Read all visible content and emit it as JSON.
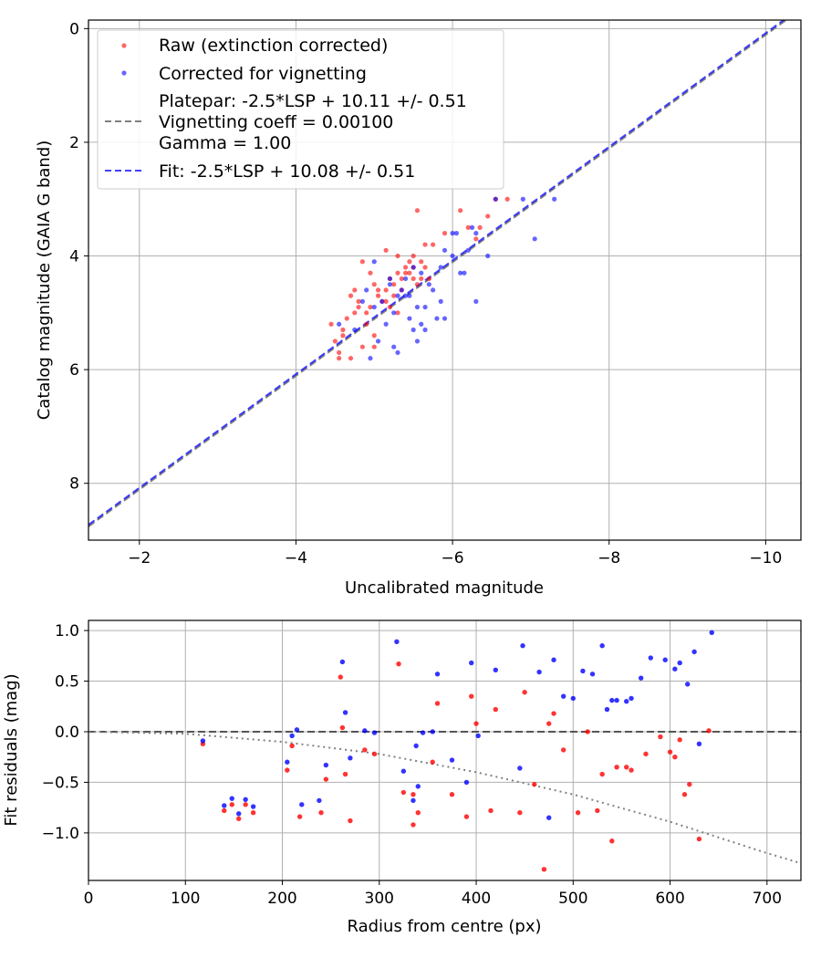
{
  "chart_data": [
    {
      "type": "scatter",
      "title": "",
      "xlabel": "Uncalibrated magnitude",
      "ylabel": "Catalog magnitude (GAIA G band)",
      "xlim": [
        -1.35,
        -10.45
      ],
      "ylim": [
        9.0,
        -0.15
      ],
      "x_inverted": true,
      "y_inverted": true,
      "grid": true,
      "legend_position": "top-left",
      "xticks": [
        -2,
        -4,
        -6,
        -8,
        -10
      ],
      "xtick_labels": [
        "−2",
        "−4",
        "−6",
        "−8",
        "−10"
      ],
      "yticks": [
        0,
        2,
        4,
        6,
        8
      ],
      "ytick_labels": [
        "0",
        "2",
        "4",
        "6",
        "8"
      ],
      "series": [
        {
          "name": "Raw (extinction corrected)",
          "kind": "scatter",
          "color": "#ff0000",
          "x": [
            -4.45,
            -4.5,
            -4.55,
            -4.6,
            -4.7,
            -4.75,
            -4.8,
            -4.85,
            -4.9,
            -4.95,
            -5.0,
            -5.05,
            -5.1,
            -5.15,
            -5.2,
            -5.25,
            -5.3,
            -5.35,
            -5.4,
            -5.45,
            -5.5,
            -5.55,
            -5.6,
            -5.65,
            -5.7,
            -4.65,
            -4.8,
            -5.0,
            -5.2,
            -5.35,
            -5.45,
            -5.55,
            -5.75,
            -5.9,
            -6.1,
            -6.2,
            -6.3,
            -6.45,
            -6.55,
            -6.7,
            -4.55,
            -4.75,
            -4.95,
            -5.15,
            -5.3,
            -5.5,
            -5.6,
            -4.6,
            -4.9,
            -5.05,
            -5.25,
            -5.4,
            -4.7,
            -5.0,
            -5.3,
            -5.5,
            -5.15,
            -4.85,
            -5.65,
            -6.35
          ],
          "y": [
            5.2,
            5.5,
            5.8,
            5.3,
            4.7,
            5.0,
            4.8,
            5.6,
            5.2,
            4.9,
            4.5,
            4.7,
            4.8,
            4.6,
            4.4,
            4.5,
            4.3,
            4.4,
            4.2,
            4.3,
            4.4,
            4.5,
            4.1,
            4.2,
            4.4,
            5.1,
            4.9,
            5.4,
            4.9,
            4.6,
            4.1,
            3.2,
            3.8,
            3.6,
            3.2,
            3.5,
            3.7,
            3.3,
            3.0,
            3.0,
            5.7,
            4.6,
            4.3,
            4.8,
            4.0,
            4.0,
            4.4,
            5.4,
            5.0,
            4.6,
            4.7,
            4.3,
            5.8,
            5.6,
            5.0,
            4.2,
            3.9,
            4.1,
            3.8,
            3.5
          ]
        },
        {
          "name": "Corrected for vignetting",
          "kind": "scatter",
          "color": "#0000ff",
          "x": [
            -4.55,
            -4.75,
            -4.9,
            -5.0,
            -5.1,
            -5.2,
            -5.3,
            -5.35,
            -5.4,
            -5.45,
            -5.5,
            -5.55,
            -5.6,
            -5.7,
            -5.75,
            -5.85,
            -5.9,
            -6.0,
            -6.05,
            -6.15,
            -6.25,
            -6.3,
            -6.45,
            -5.05,
            -5.15,
            -5.25,
            -5.45,
            -5.6,
            -5.65,
            -5.85,
            -6.1,
            -6.3,
            -6.55,
            -6.9,
            -7.05,
            -7.3,
            -4.95,
            -5.3,
            -5.55,
            -4.85,
            -5.0,
            -5.2,
            -5.4,
            -5.65,
            -5.8,
            -6.0,
            -6.2,
            -5.5,
            -5.9,
            -5.25
          ],
          "y": [
            5.2,
            5.3,
            4.6,
            4.9,
            4.8,
            4.5,
            4.7,
            4.6,
            4.4,
            4.7,
            4.2,
            4.9,
            4.3,
            4.5,
            4.6,
            4.2,
            3.9,
            4.0,
            3.6,
            4.3,
            3.5,
            3.6,
            4.0,
            5.5,
            5.2,
            5.0,
            5.1,
            5.2,
            5.3,
            4.8,
            4.3,
            4.8,
            3.0,
            3.0,
            3.7,
            3.0,
            5.8,
            5.7,
            5.5,
            4.8,
            4.1,
            4.4,
            4.7,
            4.9,
            5.1,
            3.6,
            3.9,
            5.3,
            5.1,
            5.6
          ]
        },
        {
          "name": "Platepar: -2.5*LSP + 10.11 +/- 0.51\nVignetting coeff = 0.00100\nGamma = 1.00",
          "kind": "line",
          "style": "dashed",
          "color": "#808080",
          "x": [
            -1.35,
            -10.45
          ],
          "y": [
            8.76,
            -0.34
          ]
        },
        {
          "name": "Fit: -2.5*LSP + 10.08 +/- 0.51",
          "kind": "line",
          "style": "dashed",
          "color": "#0000ff",
          "x": [
            -1.35,
            -10.45
          ],
          "y": [
            8.73,
            -0.37
          ]
        }
      ]
    },
    {
      "type": "scatter",
      "title": "",
      "xlabel": "Radius from centre (px)",
      "ylabel": "Fit residuals (mag)",
      "xlim": [
        0,
        735
      ],
      "ylim": [
        -1.47,
        1.1
      ],
      "grid": true,
      "xticks": [
        0,
        100,
        200,
        300,
        400,
        500,
        600,
        700
      ],
      "xtick_labels": [
        "0",
        "100",
        "200",
        "300",
        "400",
        "500",
        "600",
        "700"
      ],
      "yticks": [
        1.0,
        0.5,
        0.0,
        -0.5,
        -1.0
      ],
      "ytick_labels": [
        "1.0",
        "0.5",
        "0.0",
        "−0.5",
        "−1.0"
      ],
      "series": [
        {
          "name": "",
          "kind": "scatter",
          "color": "#ff0000",
          "x": [
            118,
            140,
            148,
            155,
            162,
            170,
            205,
            210,
            218,
            240,
            245,
            260,
            262,
            265,
            285,
            295,
            320,
            325,
            335,
            340,
            355,
            360,
            375,
            390,
            395,
            400,
            415,
            420,
            445,
            450,
            470,
            475,
            480,
            490,
            505,
            515,
            525,
            530,
            540,
            545,
            555,
            560,
            575,
            590,
            600,
            605,
            610,
            615,
            620,
            630,
            640,
            460,
            335,
            270
          ],
          "y": [
            -0.12,
            -0.78,
            -0.72,
            -0.86,
            -0.72,
            -0.8,
            -0.38,
            -0.14,
            -0.84,
            -0.8,
            -0.47,
            0.54,
            0.04,
            -0.42,
            -0.18,
            -0.22,
            0.67,
            -0.6,
            -0.92,
            -0.8,
            -0.3,
            0.28,
            -0.62,
            -0.84,
            0.35,
            0.08,
            -0.78,
            0.22,
            -0.8,
            0.39,
            -1.36,
            0.08,
            0.18,
            -0.18,
            -0.8,
            -0.0,
            -0.78,
            -0.42,
            -1.08,
            -0.35,
            -0.35,
            -0.38,
            -0.22,
            -0.05,
            -0.2,
            -0.25,
            -0.08,
            -0.62,
            -0.52,
            -1.06,
            0.01,
            -0.52,
            -0.62,
            -0.88
          ]
        },
        {
          "name": "",
          "kind": "scatter",
          "color": "#0000ff",
          "x": [
            118,
            140,
            148,
            155,
            162,
            170,
            205,
            210,
            215,
            220,
            245,
            262,
            265,
            270,
            285,
            295,
            318,
            325,
            335,
            340,
            345,
            355,
            360,
            375,
            390,
            395,
            402,
            420,
            445,
            448,
            465,
            475,
            480,
            490,
            500,
            510,
            520,
            530,
            535,
            540,
            545,
            555,
            560,
            570,
            580,
            595,
            605,
            610,
            618,
            625,
            630,
            643,
            238,
            338
          ],
          "y": [
            -0.09,
            -0.73,
            -0.66,
            -0.81,
            -0.67,
            -0.74,
            -0.3,
            -0.04,
            0.02,
            -0.72,
            -0.33,
            0.69,
            0.19,
            -0.26,
            0.01,
            -0.01,
            0.89,
            -0.39,
            -0.68,
            -0.54,
            -0.01,
            -0.0,
            0.57,
            -0.28,
            -0.5,
            0.68,
            -0.04,
            0.61,
            -0.36,
            0.85,
            0.59,
            -0.85,
            0.71,
            0.35,
            0.33,
            0.6,
            0.57,
            0.85,
            0.22,
            0.31,
            0.31,
            0.3,
            0.33,
            0.53,
            0.73,
            0.71,
            0.62,
            0.68,
            0.47,
            0.79,
            -0.12,
            0.98,
            -0.68,
            -0.14
          ]
        },
        {
          "name": "",
          "kind": "line",
          "style": "dashed",
          "color": "#555555",
          "x": [
            0,
            735
          ],
          "y": [
            0,
            0
          ]
        },
        {
          "name": "",
          "kind": "line",
          "style": "dotted",
          "color": "#808080",
          "x": [
            0,
            100,
            200,
            300,
            400,
            500,
            600,
            700,
            735
          ],
          "y": [
            0.0,
            -0.02,
            -0.1,
            -0.22,
            -0.4,
            -0.62,
            -0.89,
            -1.2,
            -1.3
          ]
        }
      ]
    }
  ]
}
